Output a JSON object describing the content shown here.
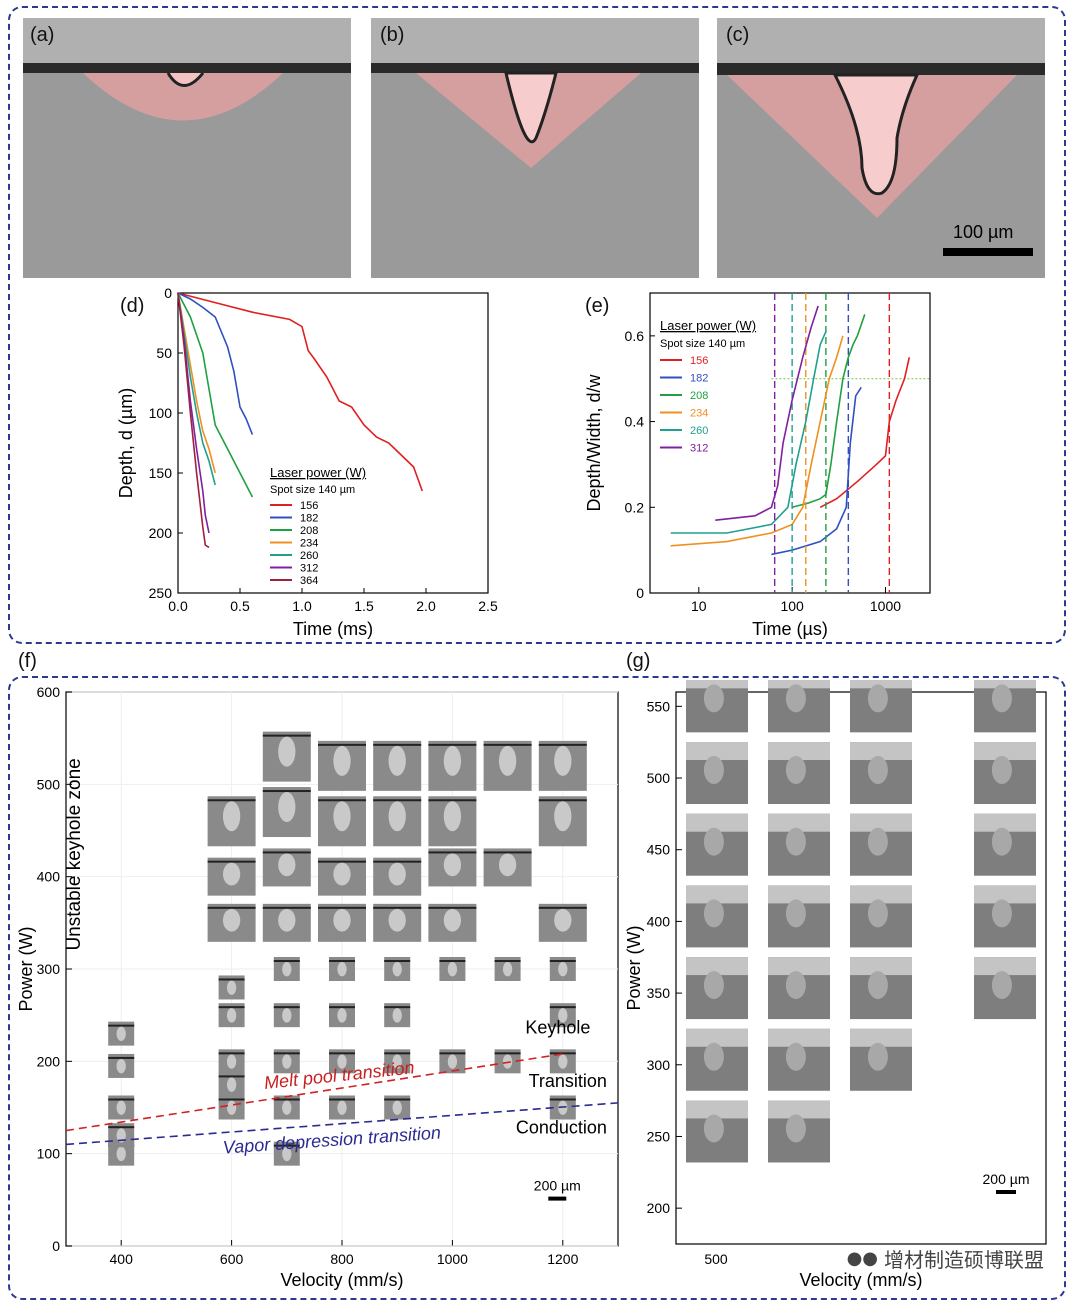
{
  "panels": {
    "a": {
      "label": "(a)"
    },
    "b": {
      "label": "(b)"
    },
    "c": {
      "label": "(c)"
    },
    "scalebar_top": "100 µm",
    "d": {
      "label": "(d)"
    },
    "e": {
      "label": "(e)"
    },
    "f": {
      "label": "(f)"
    },
    "g": {
      "label": "(g)"
    }
  },
  "colors": {
    "border": "#2b3a8f",
    "melt_overlay": "#e8a0a0"
  },
  "watermark": "增材制造硕博联盟",
  "chart_data": [
    {
      "id": "d",
      "type": "line",
      "xlabel": "Time (ms)",
      "ylabel": "Depth, d (µm)",
      "xlim": [
        0,
        2.5
      ],
      "ylim": [
        250,
        0
      ],
      "xticks": [
        "0.0",
        "0.5",
        "1.0",
        "1.5",
        "2.0",
        "2.5"
      ],
      "yticks": [
        "0",
        "50",
        "100",
        "150",
        "200",
        "250"
      ],
      "legend_title": "Laser power (W)",
      "legend_subtitle": "Spot size 140 µm",
      "legend_position": "center-right",
      "series": [
        {
          "name": "156",
          "color": "#e02020",
          "x": [
            0,
            0.3,
            0.6,
            0.9,
            1.0,
            1.05,
            1.1,
            1.2,
            1.3,
            1.4,
            1.5,
            1.6,
            1.7,
            1.8,
            1.9,
            1.97
          ],
          "y": [
            0,
            8,
            16,
            22,
            28,
            48,
            55,
            70,
            90,
            95,
            110,
            120,
            125,
            135,
            145,
            165
          ]
        },
        {
          "name": "182",
          "color": "#3050c0",
          "x": [
            0,
            0.1,
            0.2,
            0.3,
            0.4,
            0.45,
            0.5,
            0.55,
            0.6
          ],
          "y": [
            0,
            5,
            12,
            20,
            45,
            65,
            95,
            105,
            118
          ]
        },
        {
          "name": "208",
          "color": "#20a040",
          "x": [
            0,
            0.1,
            0.15,
            0.2,
            0.3,
            0.4,
            0.5,
            0.6
          ],
          "y": [
            0,
            20,
            35,
            50,
            110,
            130,
            150,
            170
          ]
        },
        {
          "name": "234",
          "color": "#f09020",
          "x": [
            0,
            0.05,
            0.1,
            0.15,
            0.2,
            0.25,
            0.3
          ],
          "y": [
            0,
            30,
            60,
            90,
            115,
            130,
            150
          ]
        },
        {
          "name": "260",
          "color": "#20a090",
          "x": [
            0,
            0.05,
            0.1,
            0.15,
            0.2,
            0.25,
            0.3
          ],
          "y": [
            0,
            35,
            70,
            100,
            125,
            140,
            160
          ]
        },
        {
          "name": "312",
          "color": "#8020a0",
          "x": [
            0,
            0.05,
            0.1,
            0.15,
            0.2,
            0.22,
            0.25
          ],
          "y": [
            0,
            40,
            90,
            130,
            165,
            185,
            200
          ]
        },
        {
          "name": "364",
          "color": "#a02040",
          "x": [
            0,
            0.05,
            0.1,
            0.15,
            0.2,
            0.22,
            0.25
          ],
          "y": [
            0,
            45,
            100,
            150,
            195,
            210,
            212
          ]
        }
      ]
    },
    {
      "id": "e",
      "type": "line",
      "xlabel": "Time (µs)",
      "ylabel": "Depth/Width, d/w",
      "xscale": "log",
      "xlim": [
        3,
        3000
      ],
      "ylim": [
        0,
        0.7
      ],
      "xticks": [
        "10",
        "100",
        "1000"
      ],
      "yticks": [
        "0",
        "0.2",
        "0.4",
        "0.6"
      ],
      "legend_title": "Laser power (W)",
      "legend_subtitle": "Spot size 140 µm",
      "legend_position": "top-left",
      "threshold_y": 0.5,
      "series": [
        {
          "name": "156",
          "color": "#e02020",
          "x": [
            200,
            300,
            500,
            800,
            1000,
            1100,
            1300,
            1600,
            1800
          ],
          "y": [
            0.2,
            0.22,
            0.26,
            0.3,
            0.32,
            0.4,
            0.45,
            0.5,
            0.55
          ],
          "vline": 1100
        },
        {
          "name": "182",
          "color": "#3050c0",
          "x": [
            60,
            100,
            200,
            300,
            380,
            420,
            480,
            550
          ],
          "y": [
            0.09,
            0.1,
            0.12,
            0.15,
            0.2,
            0.35,
            0.46,
            0.48
          ],
          "vline": 400
        },
        {
          "name": "208",
          "color": "#20a040",
          "x": [
            100,
            150,
            200,
            230,
            260,
            300,
            350,
            400,
            450,
            500,
            600
          ],
          "y": [
            0.2,
            0.21,
            0.22,
            0.23,
            0.3,
            0.4,
            0.5,
            0.55,
            0.58,
            0.6,
            0.65
          ],
          "vline": 230
        },
        {
          "name": "234",
          "color": "#f09020",
          "x": [
            5,
            20,
            60,
            100,
            130,
            160,
            200,
            250,
            300,
            350
          ],
          "y": [
            0.11,
            0.12,
            0.14,
            0.16,
            0.2,
            0.3,
            0.4,
            0.5,
            0.55,
            0.6
          ],
          "vline": 140
        },
        {
          "name": "260",
          "color": "#20a090",
          "x": [
            5,
            20,
            60,
            90,
            110,
            140,
            170,
            200,
            230
          ],
          "y": [
            0.14,
            0.14,
            0.16,
            0.2,
            0.3,
            0.4,
            0.5,
            0.58,
            0.61
          ],
          "vline": 100
        },
        {
          "name": "312",
          "color": "#8020a0",
          "x": [
            15,
            40,
            60,
            70,
            80,
            100,
            130,
            160,
            190
          ],
          "y": [
            0.17,
            0.18,
            0.2,
            0.25,
            0.35,
            0.45,
            0.55,
            0.62,
            0.67
          ],
          "vline": 65
        }
      ]
    },
    {
      "id": "f",
      "type": "scatter",
      "xlabel": "Velocity (mm/s)",
      "ylabel": "Power (W)",
      "xlim": [
        300,
        1300
      ],
      "ylim": [
        0,
        600
      ],
      "xticks": [
        "400",
        "600",
        "800",
        "1000",
        "1200"
      ],
      "yticks": [
        "0",
        "100",
        "200",
        "300",
        "400",
        "500",
        "600"
      ],
      "zone_label": "Unstable keyhole zone",
      "region_labels": [
        "Keyhole",
        "Transition",
        "Conduction"
      ],
      "melt_pool_line": {
        "label": "Melt pool transition",
        "x": [
          300,
          1200
        ],
        "y": [
          125,
          208
        ]
      },
      "vapor_line": {
        "label": "Vapor depression transition",
        "x": [
          300,
          1300
        ],
        "y": [
          110,
          155
        ]
      },
      "scalebar": "200 µm",
      "points": [
        {
          "x": 400,
          "y": 100
        },
        {
          "x": 400,
          "y": 120
        },
        {
          "x": 400,
          "y": 150
        },
        {
          "x": 400,
          "y": 195
        },
        {
          "x": 400,
          "y": 230
        },
        {
          "x": 600,
          "y": 150
        },
        {
          "x": 600,
          "y": 175
        },
        {
          "x": 600,
          "y": 200
        },
        {
          "x": 600,
          "y": 250
        },
        {
          "x": 600,
          "y": 280
        },
        {
          "x": 600,
          "y": 350
        },
        {
          "x": 600,
          "y": 400
        },
        {
          "x": 600,
          "y": 460
        },
        {
          "x": 700,
          "y": 100
        },
        {
          "x": 700,
          "y": 150
        },
        {
          "x": 700,
          "y": 200
        },
        {
          "x": 700,
          "y": 250
        },
        {
          "x": 700,
          "y": 300
        },
        {
          "x": 700,
          "y": 350
        },
        {
          "x": 700,
          "y": 410
        },
        {
          "x": 700,
          "y": 470
        },
        {
          "x": 700,
          "y": 530
        },
        {
          "x": 800,
          "y": 150
        },
        {
          "x": 800,
          "y": 200
        },
        {
          "x": 800,
          "y": 250
        },
        {
          "x": 800,
          "y": 300
        },
        {
          "x": 800,
          "y": 350
        },
        {
          "x": 800,
          "y": 400
        },
        {
          "x": 800,
          "y": 460
        },
        {
          "x": 800,
          "y": 520
        },
        {
          "x": 900,
          "y": 150
        },
        {
          "x": 900,
          "y": 200
        },
        {
          "x": 900,
          "y": 250
        },
        {
          "x": 900,
          "y": 300
        },
        {
          "x": 900,
          "y": 350
        },
        {
          "x": 900,
          "y": 400
        },
        {
          "x": 900,
          "y": 460
        },
        {
          "x": 900,
          "y": 520
        },
        {
          "x": 1000,
          "y": 200
        },
        {
          "x": 1000,
          "y": 300
        },
        {
          "x": 1000,
          "y": 350
        },
        {
          "x": 1000,
          "y": 410
        },
        {
          "x": 1000,
          "y": 460
        },
        {
          "x": 1000,
          "y": 520
        },
        {
          "x": 1100,
          "y": 200
        },
        {
          "x": 1100,
          "y": 300
        },
        {
          "x": 1100,
          "y": 410
        },
        {
          "x": 1100,
          "y": 520
        },
        {
          "x": 1200,
          "y": 150
        },
        {
          "x": 1200,
          "y": 200
        },
        {
          "x": 1200,
          "y": 250
        },
        {
          "x": 1200,
          "y": 300
        },
        {
          "x": 1200,
          "y": 350
        },
        {
          "x": 1200,
          "y": 460
        },
        {
          "x": 1200,
          "y": 520
        }
      ]
    },
    {
      "id": "g",
      "type": "scatter",
      "xlabel": "Velocity (mm/s)",
      "ylabel": "Power (W)",
      "ylim": [
        175,
        560
      ],
      "xticks": [
        "500"
      ],
      "yticks": [
        "200",
        "250",
        "300",
        "350",
        "400",
        "450",
        "500",
        "550"
      ],
      "scalebar": "200 µm",
      "columns": 4,
      "rows_per_column": [
        7,
        7,
        6,
        5
      ]
    }
  ]
}
